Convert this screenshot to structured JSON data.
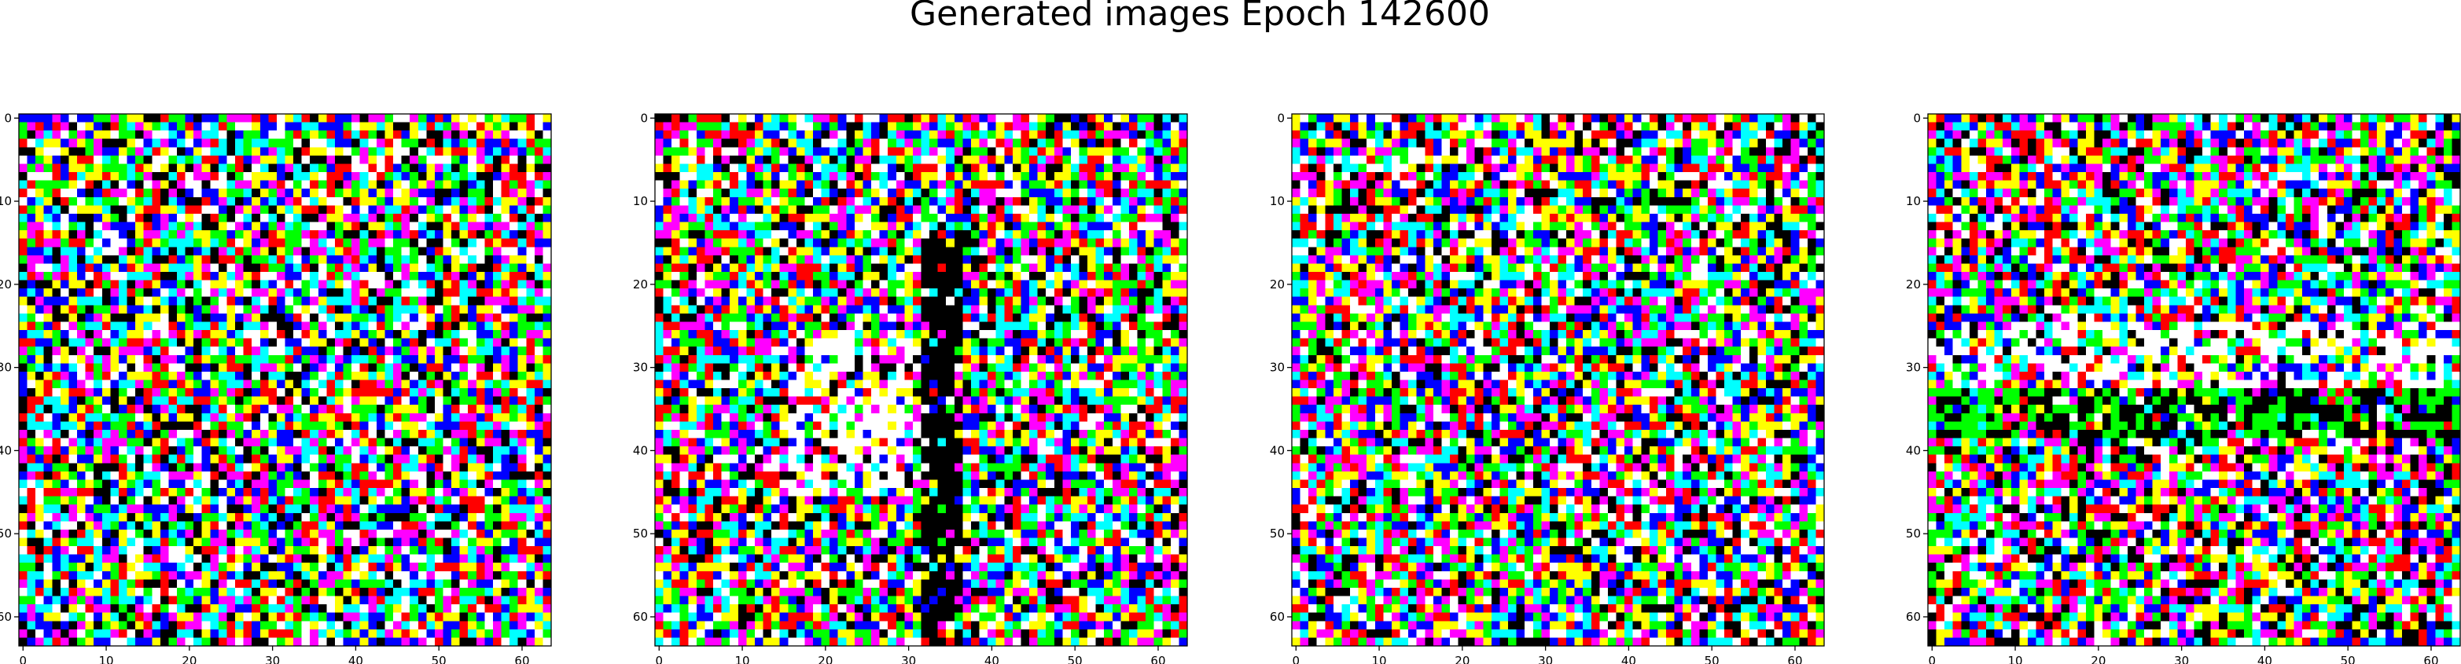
{
  "figure": {
    "suptitle": "Generated images Epoch 142600"
  },
  "palette": [
    "#ffffff",
    "#000000",
    "#ff0000",
    "#00ff00",
    "#0000ff",
    "#ffff00",
    "#ff00ff",
    "#00ffff"
  ],
  "chart_data": [
    {
      "type": "heatmap",
      "name": "generated-image-1",
      "title": "",
      "grid_size": [
        64,
        64
      ],
      "xlim": [
        -0.5,
        63.5
      ],
      "ylim": [
        63.5,
        -0.5
      ],
      "x_ticks": [
        0,
        10,
        20,
        30,
        40,
        50,
        60
      ],
      "x_tick_labels": [
        "0",
        "10",
        "20",
        "30",
        "40",
        "50",
        "60"
      ],
      "y_ticks": [
        0,
        10,
        20,
        30,
        40,
        50,
        60
      ],
      "y_tick_labels": [
        "0",
        "10",
        "20",
        "30",
        "40",
        "50",
        "60"
      ],
      "seed": 11,
      "features": []
    },
    {
      "type": "heatmap",
      "name": "generated-image-2",
      "title": "",
      "grid_size": [
        64,
        64
      ],
      "xlim": [
        -0.5,
        63.5
      ],
      "ylim": [
        63.5,
        -0.5
      ],
      "x_ticks": [
        0,
        10,
        20,
        30,
        40,
        50,
        60
      ],
      "x_tick_labels": [
        "0",
        "10",
        "20",
        "30",
        "40",
        "50",
        "60"
      ],
      "y_ticks": [
        0,
        10,
        20,
        30,
        40,
        50,
        60
      ],
      "y_tick_labels": [
        "0",
        "10",
        "20",
        "30",
        "40",
        "50",
        "60"
      ],
      "seed": 29,
      "features": [
        {
          "kind": "vertical-band",
          "col_start": 32,
          "col_end": 36,
          "row_start": 14,
          "row_end": 63,
          "color_index": 1,
          "density": 0.75
        },
        {
          "kind": "region",
          "col_start": 16,
          "col_end": 30,
          "row_start": 27,
          "row_end": 45,
          "color_index": 0,
          "density": 0.45
        }
      ]
    },
    {
      "type": "heatmap",
      "name": "generated-image-3",
      "title": "",
      "grid_size": [
        64,
        64
      ],
      "xlim": [
        -0.5,
        63.5
      ],
      "ylim": [
        63.5,
        -0.5
      ],
      "x_ticks": [
        0,
        10,
        20,
        30,
        40,
        50,
        60
      ],
      "x_tick_labels": [
        "0",
        "10",
        "20",
        "30",
        "40",
        "50",
        "60"
      ],
      "y_ticks": [
        0,
        10,
        20,
        30,
        40,
        50,
        60
      ],
      "y_tick_labels": [
        "0",
        "10",
        "20",
        "30",
        "40",
        "50",
        "60"
      ],
      "seed": 47,
      "features": []
    },
    {
      "type": "heatmap",
      "name": "generated-image-4",
      "title": "",
      "grid_size": [
        64,
        64
      ],
      "xlim": [
        -0.5,
        63.5
      ],
      "ylim": [
        63.5,
        -0.5
      ],
      "x_ticks": [
        0,
        10,
        20,
        30,
        40,
        50,
        60
      ],
      "x_tick_labels": [
        "0",
        "10",
        "20",
        "30",
        "40",
        "50",
        "60"
      ],
      "y_ticks": [
        0,
        10,
        20,
        30,
        40,
        50,
        60
      ],
      "y_tick_labels": [
        "0",
        "10",
        "20",
        "30",
        "40",
        "50",
        "60"
      ],
      "seed": 83,
      "features": [
        {
          "kind": "horizontal-band",
          "col_start": 0,
          "col_end": 63,
          "row_start": 33,
          "row_end": 38,
          "color_index": 1,
          "density": 0.55
        },
        {
          "kind": "horizontal-band",
          "col_start": 0,
          "col_end": 63,
          "row_start": 33,
          "row_end": 38,
          "color_index": 3,
          "density": 0.3
        },
        {
          "kind": "region",
          "col_start": 0,
          "col_end": 63,
          "row_start": 25,
          "row_end": 32,
          "color_index": 0,
          "density": 0.35
        }
      ]
    }
  ]
}
